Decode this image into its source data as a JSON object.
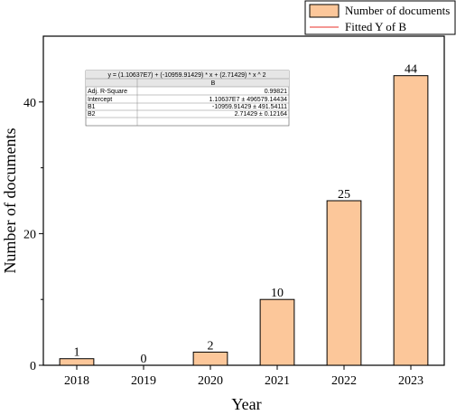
{
  "chart_data": {
    "type": "bar",
    "xlabel": "Year",
    "ylabel": "Number of documents",
    "categories": [
      "2018",
      "2019",
      "2020",
      "2021",
      "2022",
      "2023"
    ],
    "series": [
      {
        "name": "Number of documents",
        "values": [
          1,
          0,
          2,
          10,
          25,
          44
        ]
      }
    ],
    "fit": {
      "name": "Fitted Y of B",
      "model": "quadratic",
      "coefficients": {
        "intercept": 11063700,
        "b1": -10959.91429,
        "b2": 2.71429
      }
    },
    "ylim": [
      0,
      50
    ],
    "yticks": [
      0,
      20,
      40
    ],
    "legend_position": "top-right",
    "colors": {
      "bar_fill": "#fcc79a",
      "bar_stroke": "#000000",
      "fit_line": "#e8322a"
    },
    "fit_table": {
      "equation": "y =  (1.10637E7) + (-10959.91429) * x + (2.71429) * x ^ 2",
      "column_header": "B",
      "rows": [
        {
          "label": "Adj. R-Square",
          "value": "0.99821"
        },
        {
          "label": "Intercept",
          "value": "1.10637E7 ± 496579.14434"
        },
        {
          "label": "B1",
          "value": "-10959.91429 ± 491.54111"
        },
        {
          "label": "B2",
          "value": "2.71429 ± 0.12164"
        }
      ]
    }
  }
}
